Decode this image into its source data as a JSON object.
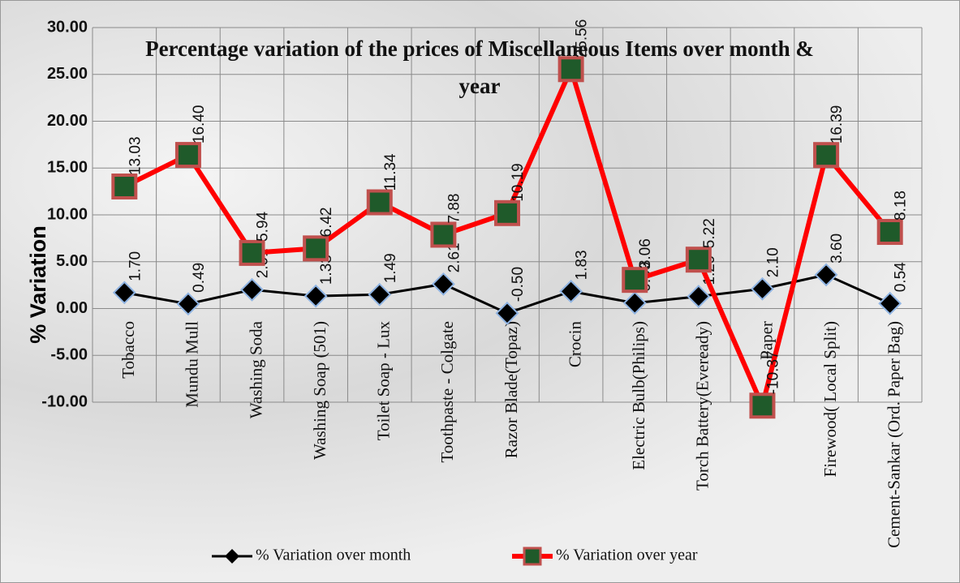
{
  "chart_data": {
    "type": "line",
    "title": "Percentage variation of the prices of Miscellaneous Items over month & year",
    "y_label": "% Variation",
    "categories": [
      "Tobacco",
      "Mundu Mull",
      "Washing Soda",
      "Washing Soap (501)",
      "Toilet Soap - Lux",
      "Toothpaste - Colgate",
      "Razor Blade(Topaz)",
      "Crocin",
      "Electric Bulb(Philips)",
      "Torch Battery(Eveready)",
      "Paper",
      "Firewood( Local Split)",
      "Cement-Sankar (Ord. Paper Bag)"
    ],
    "series": [
      {
        "name": "% Variation over month",
        "color": "#000000",
        "marker": "diamond",
        "values": [
          1.7,
          0.49,
          2.01,
          1.33,
          1.49,
          2.61,
          -0.5,
          1.83,
          0.59,
          1.29,
          2.1,
          3.6,
          0.54
        ],
        "value_labels": [
          "1.70",
          "0.49",
          "2.01",
          "1.33",
          "1.49",
          "2.61",
          "-0.50",
          "1.83",
          "0.59",
          "1.29",
          "2.10",
          "3.60",
          "0.54"
        ]
      },
      {
        "name": "% Variation over year",
        "color": "#ff0000",
        "marker": "square",
        "values": [
          13.03,
          16.4,
          5.94,
          6.42,
          11.34,
          7.88,
          10.19,
          25.56,
          3.06,
          5.22,
          -10.37,
          16.39,
          8.18
        ],
        "value_labels": [
          "13.03",
          "16.40",
          "5.94",
          "6.42",
          "11.34",
          "7.88",
          "10.19",
          "25.56",
          "3.06",
          "5.22",
          "-10.37",
          "16.39",
          "8.18"
        ]
      }
    ],
    "ylim": [
      -10,
      30
    ],
    "yticks": [
      {
        "value": -10,
        "label": "-10.00"
      },
      {
        "value": -5,
        "label": "-5.00"
      },
      {
        "value": 0,
        "label": "0.00"
      },
      {
        "value": 5,
        "label": "5.00"
      },
      {
        "value": 10,
        "label": "10.00"
      },
      {
        "value": 15,
        "label": "15.00"
      },
      {
        "value": 20,
        "label": "20.00"
      },
      {
        "value": 25,
        "label": "25.00"
      },
      {
        "value": 30,
        "label": "30.00"
      }
    ],
    "grid": true,
    "legend": "bottom"
  }
}
